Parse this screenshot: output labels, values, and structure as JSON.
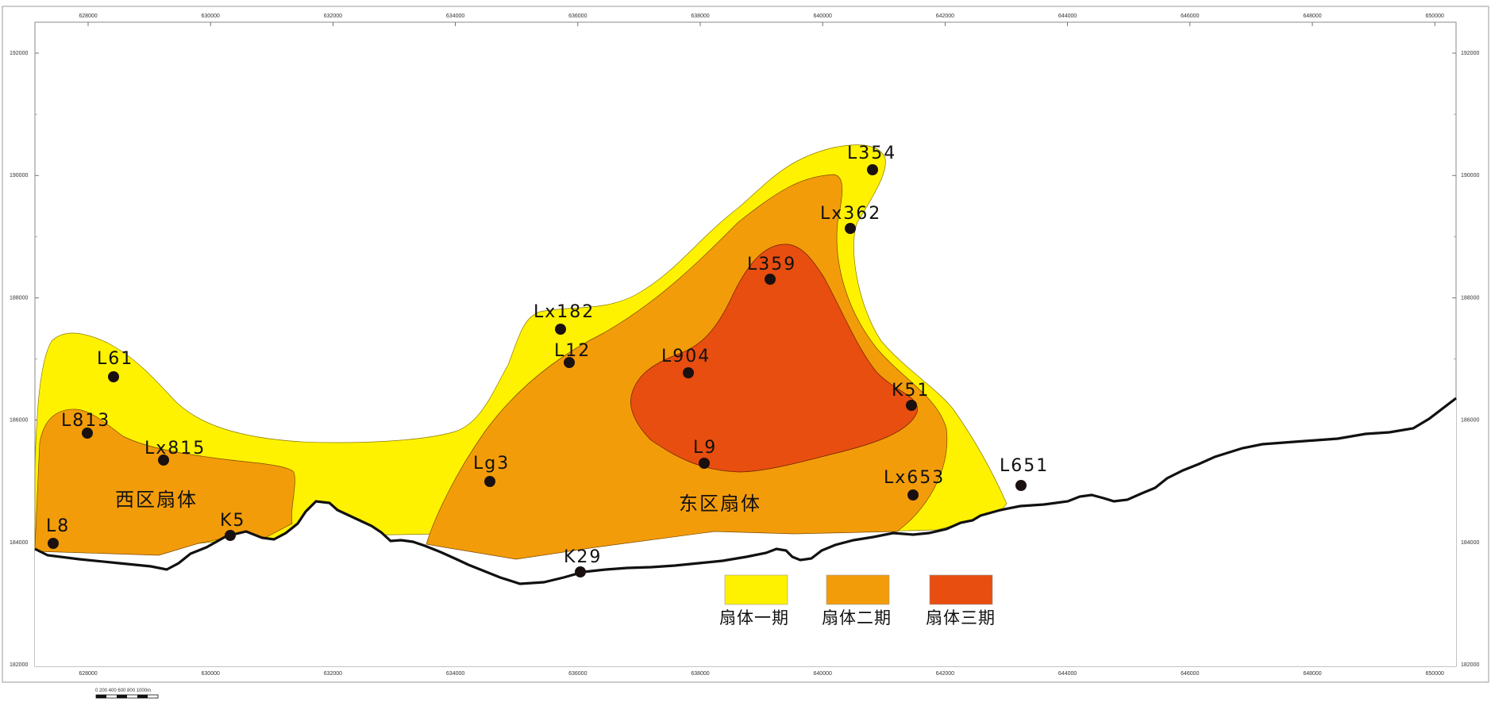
{
  "map": {
    "x_ticks": [
      "628000",
      "630000",
      "632000",
      "634000",
      "636000",
      "638000",
      "640000",
      "642000",
      "644000",
      "646000",
      "648000",
      "650000"
    ],
    "y_ticks": [
      "192000",
      "190000",
      "188000",
      "186000",
      "184000",
      "182000"
    ],
    "zones": [
      {
        "name": "fan-stage-1",
        "color": "#fff200"
      },
      {
        "name": "fan-stage-2",
        "color": "#f39c0a"
      },
      {
        "name": "fan-stage-3",
        "color": "#e84e0f"
      }
    ],
    "coastline_color": "#111111",
    "region_labels": {
      "west": "西区扇体",
      "east": "东区扇体"
    },
    "wells": [
      {
        "id": "L354",
        "label": "L354"
      },
      {
        "id": "Lx362",
        "label": "Lx362"
      },
      {
        "id": "L359",
        "label": "L359"
      },
      {
        "id": "Lx182",
        "label": "Lx182"
      },
      {
        "id": "L12",
        "label": "L12"
      },
      {
        "id": "L904",
        "label": "L904"
      },
      {
        "id": "K51",
        "label": "K51"
      },
      {
        "id": "L9",
        "label": "L9"
      },
      {
        "id": "Lx653",
        "label": "Lx653"
      },
      {
        "id": "L651",
        "label": "L651"
      },
      {
        "id": "Lg3",
        "label": "Lg3"
      },
      {
        "id": "K29",
        "label": "K29"
      },
      {
        "id": "L61",
        "label": "L61"
      },
      {
        "id": "L813",
        "label": "L813"
      },
      {
        "id": "Lx815",
        "label": "Lx815"
      },
      {
        "id": "K5",
        "label": "K5"
      },
      {
        "id": "L8",
        "label": "L8"
      }
    ],
    "legend": [
      {
        "label": "扇体一期",
        "color": "#fff200"
      },
      {
        "label": "扇体二期",
        "color": "#f39c0a"
      },
      {
        "label": "扇体三期",
        "color": "#e84e0f"
      }
    ],
    "scale_bar": {
      "text": "0   200  400  600  800 1000m"
    }
  }
}
